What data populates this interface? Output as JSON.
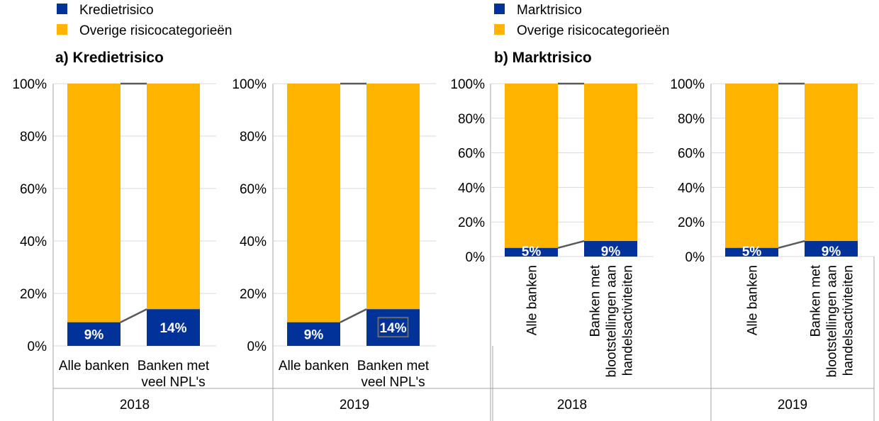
{
  "colors": {
    "primary": "#003299",
    "other": "#FFB400",
    "gridline": "#d9d9d9",
    "axis": "#a6a6a6",
    "connector": "#595959",
    "text": "#000000",
    "label_text": "#ffffff"
  },
  "chart_data": [
    {
      "type": "bar",
      "stacked": true,
      "title": "a) Kredietrisico",
      "legend": {
        "position": "top-left",
        "entries": [
          "Kredietrisico",
          "Overige risicocategorieën"
        ]
      },
      "series_names": [
        "Kredietrisico",
        "Overige risicocategorieën"
      ],
      "y_tick_labels": [
        "0%",
        "20%",
        "40%",
        "60%",
        "80%",
        "100%"
      ],
      "ylim": [
        0,
        100
      ],
      "panels": [
        {
          "year": "2018",
          "categories": [
            {
              "lines": [
                "Alle banken"
              ],
              "value": 9,
              "label": "9%",
              "remainder": 91
            },
            {
              "lines": [
                "Banken met",
                "veel NPL's"
              ],
              "value": 14,
              "label": "14%",
              "remainder": 86
            }
          ]
        },
        {
          "year": "2019",
          "categories": [
            {
              "lines": [
                "Alle banken"
              ],
              "value": 9,
              "label": "9%",
              "remainder": 91
            },
            {
              "lines": [
                "Banken met",
                "veel NPL's"
              ],
              "value": 14,
              "label": "14%",
              "remainder": 86,
              "boxed": true
            }
          ]
        }
      ]
    },
    {
      "type": "bar",
      "stacked": true,
      "title": "b)  Marktrisico",
      "legend": {
        "position": "top-left",
        "entries": [
          "Marktrisico",
          "Overige risicocategorieën"
        ]
      },
      "series_names": [
        "Marktrisico",
        "Overige risicocategorieën"
      ],
      "y_tick_labels": [
        "0%",
        "20%",
        "40%",
        "60%",
        "80%",
        "100%"
      ],
      "ylim": [
        0,
        100
      ],
      "panels": [
        {
          "year": "2018",
          "categories": [
            {
              "lines": [
                "Alle banken"
              ],
              "value": 5,
              "label": "5%",
              "remainder": 95
            },
            {
              "lines": [
                "Banken met",
                "blootstellingen aan",
                "handelsactiviteiten"
              ],
              "value": 9,
              "label": "9%",
              "remainder": 91
            }
          ]
        },
        {
          "year": "2019",
          "categories": [
            {
              "lines": [
                "Alle banken"
              ],
              "value": 5,
              "label": "5%",
              "remainder": 95
            },
            {
              "lines": [
                "Banken met",
                "blootstellingen aan",
                "handelsactiviteiten"
              ],
              "value": 9,
              "label": "9%",
              "remainder": 91
            }
          ]
        }
      ]
    }
  ]
}
